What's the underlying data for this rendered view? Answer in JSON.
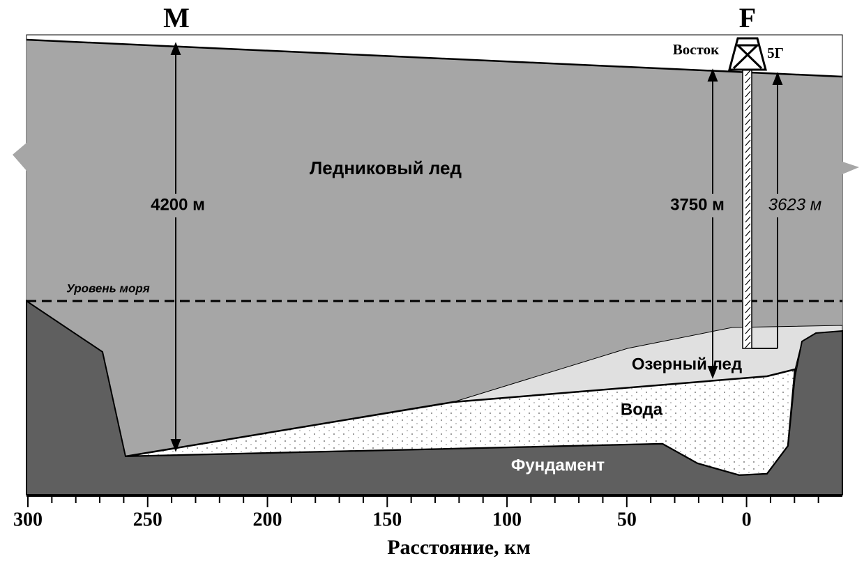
{
  "labels": {
    "point_m": "M",
    "point_f": "F",
    "station": "Восток",
    "borehole": "5Г",
    "glacier_ice": "Ледниковый лед",
    "depth_m": "4200 м",
    "depth_f": "3750 м",
    "depth_borehole": "3623 м",
    "sea_level": "Уровень моря",
    "lake_ice": "Озерный лед",
    "water": "Вода",
    "bedrock": "Фундамент"
  },
  "axis": {
    "title": "Расстояние, км",
    "xlim": [
      300,
      -40
    ],
    "xticks": [
      300,
      250,
      200,
      150,
      100,
      50,
      0
    ],
    "xminor_ticks": [
      290,
      280,
      270,
      260,
      240,
      230,
      220,
      210,
      190,
      180,
      170,
      160,
      140,
      130,
      120,
      110,
      90,
      80,
      70,
      60,
      40,
      30,
      20,
      10,
      -10,
      -20,
      -30
    ]
  }
}
